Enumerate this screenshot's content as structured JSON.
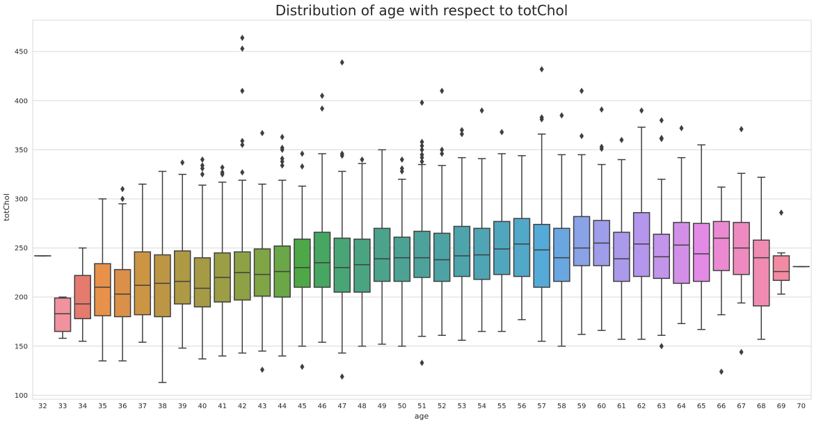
{
  "chart_data": {
    "type": "box",
    "title": "Distribution of age with respect to totChol",
    "xlabel": "age",
    "ylabel": "totChol",
    "ylim": [
      96,
      482
    ],
    "y_ticks": [
      100,
      150,
      200,
      250,
      300,
      350,
      400,
      450
    ],
    "grid": "horizontal",
    "legend": "none",
    "colors": {
      "background": "#ffffff",
      "grid": "#d9d9d9",
      "box_edge": "#3f3f3f"
    },
    "boxes": [
      {
        "age": "32",
        "min": 242,
        "q1": 242,
        "median": 242,
        "q3": 242,
        "max": 242,
        "outliers": [],
        "color": "#f77189"
      },
      {
        "age": "33",
        "min": 158,
        "q1": 165,
        "median": 183,
        "q3": 199,
        "max": 200,
        "outliers": [],
        "color": "#f0939f"
      },
      {
        "age": "34",
        "min": 155,
        "q1": 178,
        "median": 193,
        "q3": 222,
        "max": 250,
        "outliers": [],
        "color": "#e57a6f"
      },
      {
        "age": "35",
        "min": 135,
        "q1": 181,
        "median": 210,
        "q3": 234,
        "max": 300,
        "outliers": [],
        "color": "#e7914b"
      },
      {
        "age": "36",
        "min": 135,
        "q1": 180,
        "median": 203,
        "q3": 228,
        "max": 295,
        "outliers": [
          300,
          310
        ],
        "color": "#da9049"
      },
      {
        "age": "37",
        "min": 154,
        "q1": 182,
        "median": 212,
        "q3": 246,
        "max": 315,
        "outliers": [],
        "color": "#cc9544"
      },
      {
        "age": "38",
        "min": 113,
        "q1": 180,
        "median": 214,
        "q3": 243,
        "max": 328,
        "outliers": [],
        "color": "#bd9645"
      },
      {
        "age": "39",
        "min": 148,
        "q1": 193,
        "median": 216,
        "q3": 247,
        "max": 325,
        "outliers": [
          337
        ],
        "color": "#ae9a45"
      },
      {
        "age": "40",
        "min": 137,
        "q1": 190,
        "median": 209,
        "q3": 240,
        "max": 314,
        "outliers": [
          325,
          331,
          334,
          340
        ],
        "color": "#a59b45"
      },
      {
        "age": "41",
        "min": 140,
        "q1": 195,
        "median": 220,
        "q3": 245,
        "max": 317,
        "outliers": [
          325,
          327,
          332
        ],
        "color": "#9b9e45"
      },
      {
        "age": "42",
        "min": 143,
        "q1": 197,
        "median": 225,
        "q3": 246,
        "max": 319,
        "outliers": [
          327,
          355,
          359,
          410,
          453,
          464
        ],
        "color": "#8ea245"
      },
      {
        "age": "43",
        "min": 145,
        "q1": 201,
        "median": 223,
        "q3": 249,
        "max": 315,
        "outliers": [
          126,
          367
        ],
        "color": "#7fa545"
      },
      {
        "age": "44",
        "min": 140,
        "q1": 200,
        "median": 226,
        "q3": 252,
        "max": 319,
        "outliers": [
          334,
          338,
          341,
          350,
          352,
          363
        ],
        "color": "#6aa746"
      },
      {
        "age": "45",
        "min": 150,
        "q1": 210,
        "median": 230,
        "q3": 259,
        "max": 313,
        "outliers": [
          129,
          333,
          346
        ],
        "color": "#4ea847"
      },
      {
        "age": "46",
        "min": 154,
        "q1": 210,
        "median": 235,
        "q3": 266,
        "max": 346,
        "outliers": [
          392,
          405
        ],
        "color": "#47a661"
      },
      {
        "age": "47",
        "min": 143,
        "q1": 205,
        "median": 230,
        "q3": 260,
        "max": 328,
        "outliers": [
          119,
          344,
          346,
          439
        ],
        "color": "#49a575"
      },
      {
        "age": "48",
        "min": 150,
        "q1": 205,
        "median": 233,
        "q3": 259,
        "max": 336,
        "outliers": [
          340
        ],
        "color": "#4aa482"
      },
      {
        "age": "49",
        "min": 152,
        "q1": 216,
        "median": 239,
        "q3": 270,
        "max": 350,
        "outliers": [],
        "color": "#4ba38c"
      },
      {
        "age": "50",
        "min": 150,
        "q1": 216,
        "median": 240,
        "q3": 261,
        "max": 320,
        "outliers": [
          328,
          331,
          340
        ],
        "color": "#4ca394"
      },
      {
        "age": "51",
        "min": 160,
        "q1": 220,
        "median": 240,
        "q3": 267,
        "max": 335,
        "outliers": [
          133,
          338,
          342,
          345,
          350,
          354,
          358,
          398
        ],
        "color": "#4da39c"
      },
      {
        "age": "52",
        "min": 161,
        "q1": 216,
        "median": 238,
        "q3": 265,
        "max": 334,
        "outliers": [
          346,
          350,
          410
        ],
        "color": "#4da3a3"
      },
      {
        "age": "53",
        "min": 156,
        "q1": 221,
        "median": 242,
        "q3": 272,
        "max": 342,
        "outliers": [
          366,
          370
        ],
        "color": "#4ea4ab"
      },
      {
        "age": "54",
        "min": 165,
        "q1": 218,
        "median": 243,
        "q3": 270,
        "max": 341,
        "outliers": [
          390
        ],
        "color": "#4fa5b3"
      },
      {
        "age": "55",
        "min": 165,
        "q1": 223,
        "median": 249,
        "q3": 277,
        "max": 346,
        "outliers": [
          368
        ],
        "color": "#50a6bd"
      },
      {
        "age": "56",
        "min": 177,
        "q1": 221,
        "median": 254,
        "q3": 280,
        "max": 344,
        "outliers": [],
        "color": "#52a8c9"
      },
      {
        "age": "57",
        "min": 155,
        "q1": 210,
        "median": 248,
        "q3": 274,
        "max": 366,
        "outliers": [
          381,
          383,
          432
        ],
        "color": "#55aad7"
      },
      {
        "age": "58",
        "min": 150,
        "q1": 216,
        "median": 240,
        "q3": 270,
        "max": 345,
        "outliers": [
          385
        ],
        "color": "#6aa7e0"
      },
      {
        "age": "59",
        "min": 162,
        "q1": 232,
        "median": 250,
        "q3": 282,
        "max": 345,
        "outliers": [
          364,
          410
        ],
        "color": "#8aa2e6"
      },
      {
        "age": "60",
        "min": 166,
        "q1": 232,
        "median": 255,
        "q3": 278,
        "max": 335,
        "outliers": [
          351,
          353,
          391
        ],
        "color": "#9e9de9"
      },
      {
        "age": "61",
        "min": 157,
        "q1": 216,
        "median": 239,
        "q3": 266,
        "max": 340,
        "outliers": [
          360
        ],
        "color": "#ab99ea"
      },
      {
        "age": "62",
        "min": 157,
        "q1": 221,
        "median": 254,
        "q3": 286,
        "max": 373,
        "outliers": [
          390
        ],
        "color": "#b497ec"
      },
      {
        "age": "63",
        "min": 161,
        "q1": 219,
        "median": 241,
        "q3": 264,
        "max": 320,
        "outliers": [
          150,
          361,
          362,
          380
        ],
        "color": "#c294ea"
      },
      {
        "age": "64",
        "min": 173,
        "q1": 214,
        "median": 253,
        "q3": 276,
        "max": 342,
        "outliers": [
          372
        ],
        "color": "#d28fe8"
      },
      {
        "age": "65",
        "min": 167,
        "q1": 216,
        "median": 244,
        "q3": 275,
        "max": 355,
        "outliers": [],
        "color": "#e38ae6"
      },
      {
        "age": "66",
        "min": 182,
        "q1": 227,
        "median": 260,
        "q3": 277,
        "max": 312,
        "outliers": [
          124
        ],
        "color": "#eb8ad2"
      },
      {
        "age": "67",
        "min": 194,
        "q1": 223,
        "median": 250,
        "q3": 276,
        "max": 326,
        "outliers": [
          144,
          371
        ],
        "color": "#ef8ac0"
      },
      {
        "age": "68",
        "min": 157,
        "q1": 191,
        "median": 240,
        "q3": 258,
        "max": 322,
        "outliers": [],
        "color": "#f08bb1"
      },
      {
        "age": "69",
        "min": 203,
        "q1": 217,
        "median": 226,
        "q3": 242,
        "max": 245,
        "outliers": [
          286
        ],
        "color": "#f28ba2"
      },
      {
        "age": "70",
        "min": 231,
        "q1": 231,
        "median": 231,
        "q3": 231,
        "max": 231,
        "outliers": [],
        "color": "#f38b95"
      }
    ]
  }
}
